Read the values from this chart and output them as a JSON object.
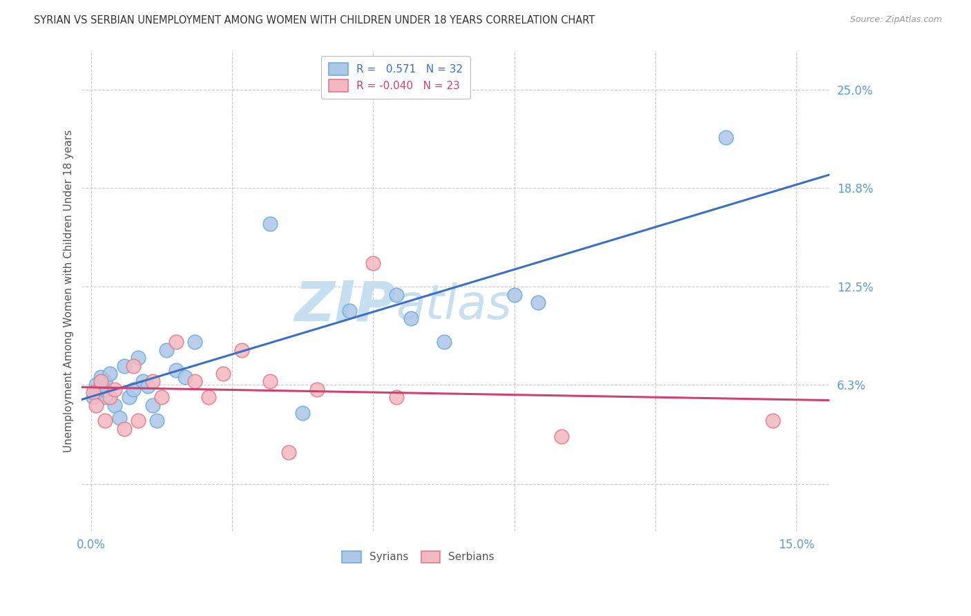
{
  "title": "SYRIAN VS SERBIAN UNEMPLOYMENT AMONG WOMEN WITH CHILDREN UNDER 18 YEARS CORRELATION CHART",
  "source": "Source: ZipAtlas.com",
  "ylabel": "Unemployment Among Women with Children Under 18 years",
  "x_ticks": [
    0.0,
    0.03,
    0.06,
    0.09,
    0.12,
    0.15
  ],
  "x_tick_labels": [
    "0.0%",
    "",
    "",
    "",
    "",
    "15.0%"
  ],
  "y_ticks": [
    0.0,
    0.063,
    0.125,
    0.188,
    0.25
  ],
  "y_tick_labels": [
    "",
    "6.3%",
    "12.5%",
    "18.8%",
    "25.0%"
  ],
  "xlim": [
    -0.002,
    0.157
  ],
  "ylim": [
    -0.03,
    0.275
  ],
  "legend_bottom": [
    "Syrians",
    "Serbians"
  ],
  "syrians_x": [
    0.0005,
    0.001,
    0.001,
    0.002,
    0.002,
    0.003,
    0.003,
    0.003,
    0.004,
    0.005,
    0.006,
    0.007,
    0.008,
    0.009,
    0.01,
    0.011,
    0.012,
    0.013,
    0.014,
    0.016,
    0.018,
    0.02,
    0.022,
    0.038,
    0.045,
    0.055,
    0.065,
    0.068,
    0.075,
    0.09,
    0.095,
    0.135
  ],
  "syrians_y": [
    0.055,
    0.063,
    0.058,
    0.062,
    0.068,
    0.055,
    0.06,
    0.065,
    0.07,
    0.05,
    0.042,
    0.075,
    0.055,
    0.06,
    0.08,
    0.065,
    0.062,
    0.05,
    0.04,
    0.085,
    0.072,
    0.068,
    0.09,
    0.165,
    0.045,
    0.11,
    0.12,
    0.105,
    0.09,
    0.12,
    0.115,
    0.22
  ],
  "serbians_x": [
    0.0005,
    0.001,
    0.002,
    0.003,
    0.004,
    0.005,
    0.007,
    0.009,
    0.01,
    0.013,
    0.015,
    0.018,
    0.022,
    0.025,
    0.028,
    0.032,
    0.038,
    0.042,
    0.048,
    0.06,
    0.065,
    0.1,
    0.145
  ],
  "serbians_y": [
    0.058,
    0.05,
    0.065,
    0.04,
    0.055,
    0.06,
    0.035,
    0.075,
    0.04,
    0.065,
    0.055,
    0.09,
    0.065,
    0.055,
    0.07,
    0.085,
    0.065,
    0.02,
    0.06,
    0.14,
    0.055,
    0.03,
    0.04
  ],
  "syrian_color": "#aec6e8",
  "syrian_edge": "#6baed6",
  "serbian_color": "#f4b8c1",
  "serbian_edge": "#e07b8a",
  "blue_line_color": "#3a6fc4",
  "pink_line_color": "#d04070",
  "watermark_color": "#d4eaf7",
  "background_color": "#ffffff",
  "grid_color": "#c8c8c8",
  "title_color": "#333333",
  "axis_label_color": "#555555",
  "tick_label_color": "#5b9bd5",
  "source_color": "#999999",
  "legend_r_blue": "#3a6fc4",
  "legend_r_pink": "#d04070"
}
